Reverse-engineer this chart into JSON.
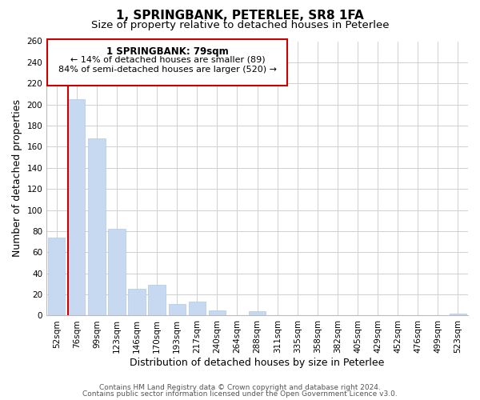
{
  "title": "1, SPRINGBANK, PETERLEE, SR8 1FA",
  "subtitle": "Size of property relative to detached houses in Peterlee",
  "xlabel": "Distribution of detached houses by size in Peterlee",
  "ylabel": "Number of detached properties",
  "bar_labels": [
    "52sqm",
    "76sqm",
    "99sqm",
    "123sqm",
    "146sqm",
    "170sqm",
    "193sqm",
    "217sqm",
    "240sqm",
    "264sqm",
    "288sqm",
    "311sqm",
    "335sqm",
    "358sqm",
    "382sqm",
    "405sqm",
    "429sqm",
    "452sqm",
    "476sqm",
    "499sqm",
    "523sqm"
  ],
  "bar_values": [
    74,
    205,
    168,
    82,
    25,
    29,
    11,
    13,
    5,
    0,
    4,
    0,
    0,
    0,
    0,
    0,
    0,
    0,
    0,
    0,
    2
  ],
  "bar_color": "#c6d9f0",
  "bar_edge_color": "#b0c8e8",
  "highlight_color": "#cc0000",
  "ylim": [
    0,
    260
  ],
  "yticks": [
    0,
    20,
    40,
    60,
    80,
    100,
    120,
    140,
    160,
    180,
    200,
    220,
    240,
    260
  ],
  "annotation_title": "1 SPRINGBANK: 79sqm",
  "annotation_line1": "← 14% of detached houses are smaller (89)",
  "annotation_line2": "84% of semi-detached houses are larger (520) →",
  "annotation_box_color": "#ffffff",
  "annotation_box_edge": "#cc0000",
  "footer_line1": "Contains HM Land Registry data © Crown copyright and database right 2024.",
  "footer_line2": "Contains public sector information licensed under the Open Government Licence v3.0.",
  "background_color": "#ffffff",
  "grid_color": "#d0d0d0",
  "title_fontsize": 11,
  "subtitle_fontsize": 9.5,
  "axis_label_fontsize": 9,
  "tick_fontsize": 7.5,
  "footer_fontsize": 6.5
}
